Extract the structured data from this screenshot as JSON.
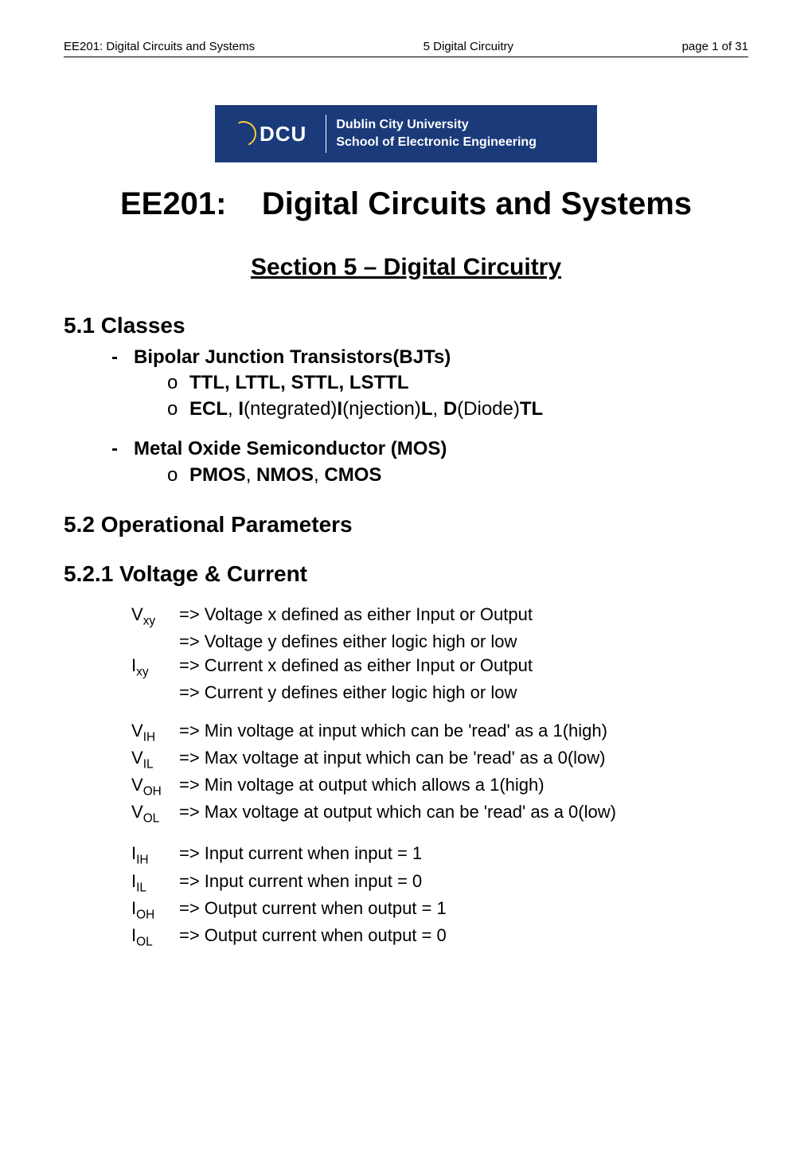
{
  "header": {
    "left": "EE201: Digital Circuits and Systems",
    "center": "5 Digital Circuitry",
    "right": "page 1 of 31"
  },
  "logo": {
    "abbrev": "DCU",
    "line1": "Dublin City University",
    "line2": "School of Electronic Engineering",
    "bg_color": "#1a3a7a",
    "text_color": "#ffffff",
    "swirl_color": "#ffcc33"
  },
  "title": {
    "course": "EE201:",
    "name": "Digital Circuits and Systems"
  },
  "section_heading": "Section 5 – Digital Circuitry",
  "s51": {
    "heading": "5.1 Classes",
    "b1": "Bipolar Junction Transistors(BJTs)",
    "b1a": "TTL, LTTL, STTL, LSTTL",
    "b1b_prefix": "ECL",
    "b1b_i1": "I",
    "b1b_t1": "(ntegrated)",
    "b1b_i2": "I",
    "b1b_t2": "(njection)",
    "b1b_l": "L",
    "b1b_sep": ", ",
    "b1b_d": "D",
    "b1b_t3": "(Diode)",
    "b1b_tl": "TL",
    "b2": "Metal Oxide Semiconductor (MOS)",
    "b2a_p": "PMOS",
    "b2a_n": "NMOS",
    "b2a_c": "CMOS"
  },
  "s52": {
    "heading": "5.2 Operational Parameters"
  },
  "s521": {
    "heading": "5.2.1 Voltage & Current",
    "vxy_sym": "V",
    "vxy_sub": "xy",
    "vxy_l1": "=> Voltage x defined as either Input or Output",
    "vxy_l2": "=> Voltage y defines either logic high or low",
    "ixy_sym": "I",
    "ixy_sub": "xy",
    "ixy_l1": "=> Current x defined as either Input or Output",
    "ixy_l2": "=> Current y defines either logic high or low",
    "vih_sym": "V",
    "vih_sub": "IH",
    "vih_t": "=> Min voltage at input which can be 'read' as a 1(high)",
    "vil_sym": "V",
    "vil_sub": "IL",
    "vil_t": "=> Max voltage at input which can be 'read' as a 0(low)",
    "voh_sym": "V",
    "voh_sub": "OH",
    "voh_t": "=> Min voltage at output which allows a 1(high)",
    "vol_sym": "V",
    "vol_sub": "OL",
    "vol_t": "=> Max voltage at output which can be 'read' as a 0(low)",
    "iih_sym": "I",
    "iih_sub": "IH",
    "iih_t": "=> Input current when input = 1",
    "iil_sym": "I",
    "iil_sub": "IL",
    "iil_t": "=> Input current when input = 0",
    "ioh_sym": "I",
    "ioh_sub": "OH",
    "ioh_t": "=> Output current when output = 1",
    "iol_sym": "I",
    "iol_sub": "OL",
    "iol_t": "=> Output current when output = 0"
  }
}
